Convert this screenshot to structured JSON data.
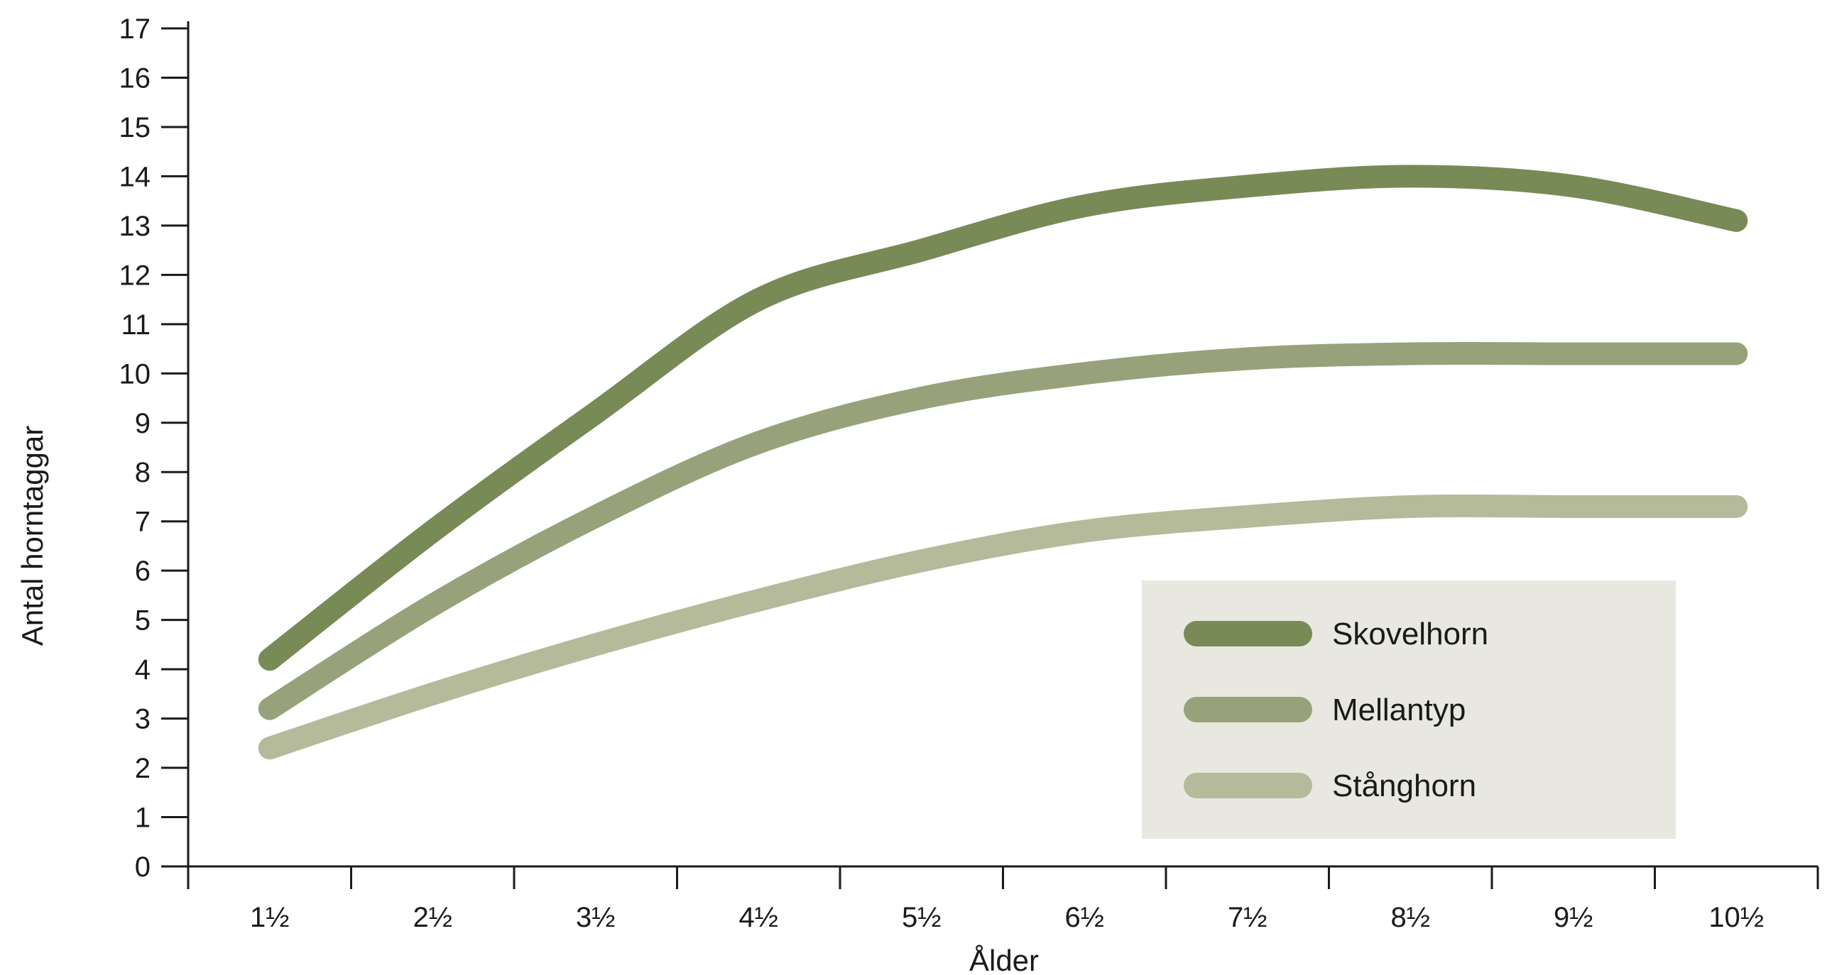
{
  "chart_data": {
    "type": "line",
    "xlabel": "Ålder",
    "ylabel": "Antal horntaggar",
    "categories": [
      "1½",
      "2½",
      "3½",
      "4½",
      "5½",
      "6½",
      "7½",
      "8½",
      "9½",
      "10½"
    ],
    "ylim": [
      0,
      17
    ],
    "yticks": [
      0,
      1,
      2,
      3,
      4,
      5,
      6,
      7,
      8,
      9,
      10,
      11,
      12,
      13,
      14,
      15,
      16,
      17
    ],
    "grid": false,
    "legend_position": "bottom-right",
    "legend_background": "#e8e8e0",
    "series": [
      {
        "name": "Skovelhorn",
        "color": "#788a56",
        "values": [
          4.2,
          6.8,
          9.2,
          11.5,
          12.5,
          13.4,
          13.8,
          14.0,
          13.8,
          13.1
        ]
      },
      {
        "name": "Mellantyp",
        "color": "#97a27a",
        "values": [
          3.2,
          5.3,
          7.1,
          8.6,
          9.5,
          10.0,
          10.3,
          10.4,
          10.4,
          10.4
        ]
      },
      {
        "name": "Stånghorn",
        "color": "#b5ba9a",
        "values": [
          2.4,
          3.5,
          4.5,
          5.4,
          6.2,
          6.8,
          7.1,
          7.3,
          7.3,
          7.3
        ]
      }
    ]
  }
}
